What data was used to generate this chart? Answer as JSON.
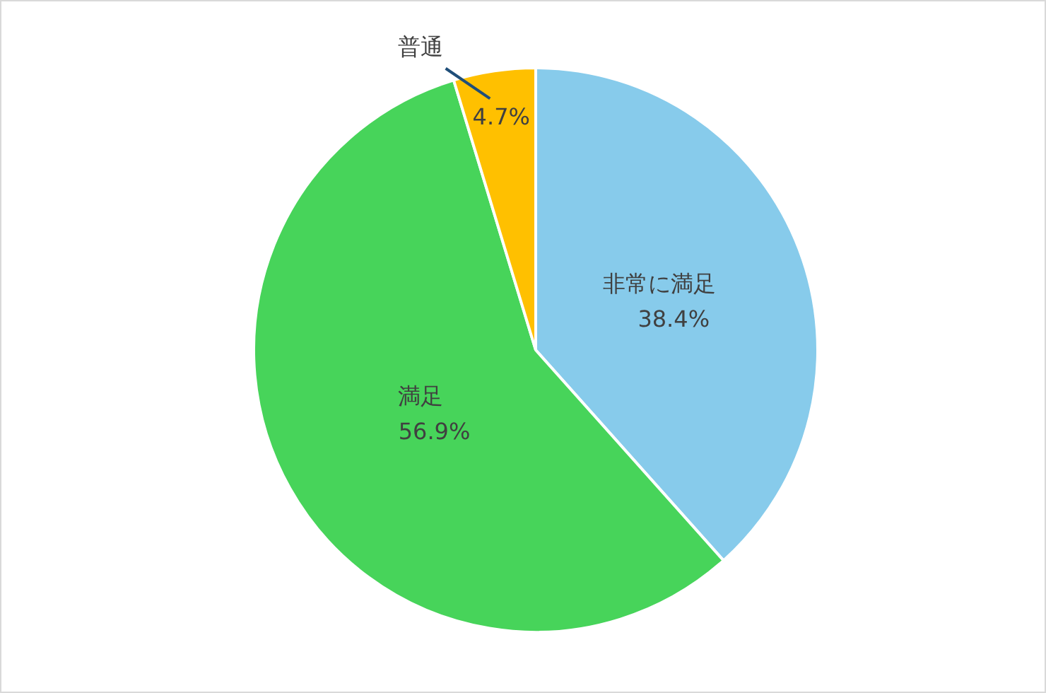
{
  "chart_data": {
    "type": "pie",
    "categories": [
      "非常に満足",
      "満足",
      "普通"
    ],
    "values": [
      38.4,
      56.9,
      4.7
    ],
    "colors": [
      "#87cbeb",
      "#47d45a",
      "#ffc000"
    ],
    "value_labels": [
      "38.4%",
      "56.9%",
      "4.7%"
    ],
    "legend": false
  }
}
